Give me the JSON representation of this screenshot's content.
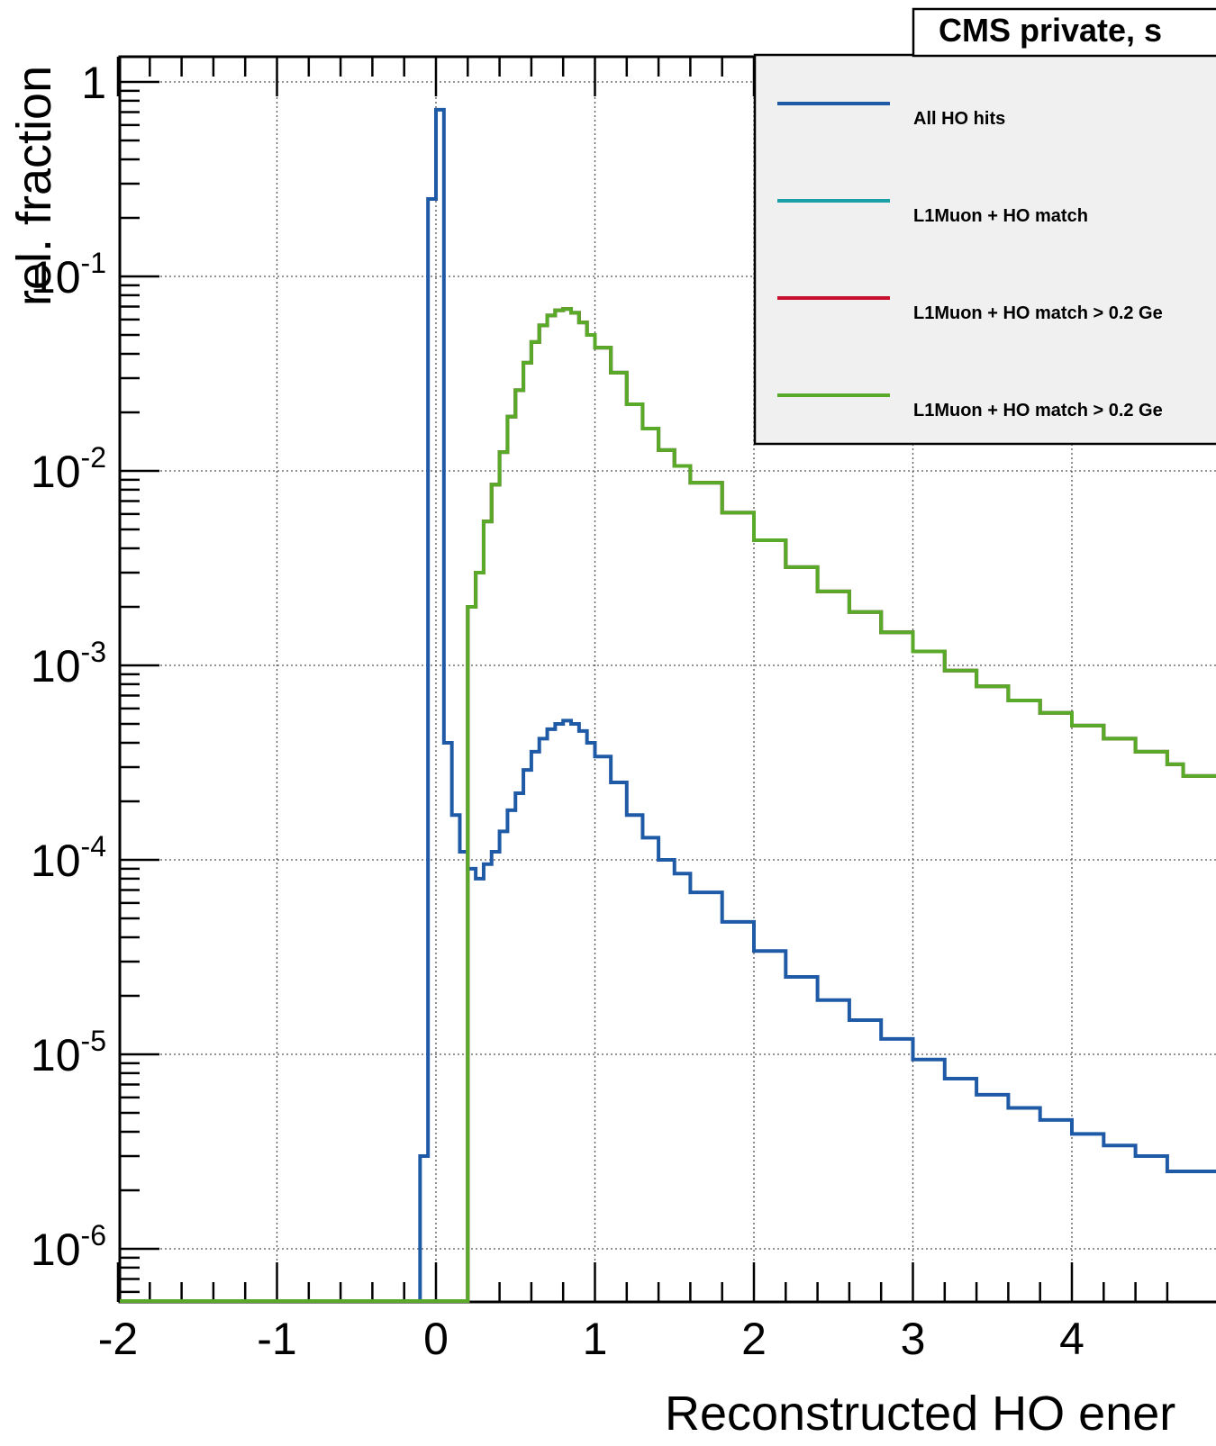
{
  "chart_data": {
    "type": "line",
    "title": "CMS private, s",
    "xlabel": "Reconstructed HO ener",
    "ylabel": "rel. fraction",
    "x_range": [
      -2,
      4.75
    ],
    "y_range": [
      5.5e-07,
      1.2
    ],
    "y_scale": "log",
    "grid": true,
    "x_ticks": [
      -2,
      -1,
      0,
      1,
      2,
      3,
      4
    ],
    "x_tick_labels": [
      "-2",
      "-1",
      "0",
      "1",
      "2",
      "3",
      "4"
    ],
    "y_ticks": [
      {
        "value": 1,
        "base": "1",
        "exp": ""
      },
      {
        "value": 0.1,
        "base": "10",
        "exp": "-1"
      },
      {
        "value": 0.01,
        "base": "10",
        "exp": "-2"
      },
      {
        "value": 0.001,
        "base": "10",
        "exp": "-3"
      },
      {
        "value": 0.0001,
        "base": "10",
        "exp": "-4"
      },
      {
        "value": 1e-05,
        "base": "10",
        "exp": "-5"
      },
      {
        "value": 1e-06,
        "base": "10",
        "exp": "-6"
      }
    ],
    "legend_position": "top-right",
    "series": [
      {
        "name": "All HO hits",
        "color": "#1f5aa6",
        "x": [
          -0.1,
          -0.05,
          0.0,
          0.05,
          0.1,
          0.15,
          0.2,
          0.25,
          0.3,
          0.35,
          0.4,
          0.45,
          0.5,
          0.55,
          0.6,
          0.65,
          0.7,
          0.75,
          0.8,
          0.85,
          0.9,
          0.95,
          1.0,
          1.1,
          1.2,
          1.3,
          1.4,
          1.5,
          1.6,
          1.8,
          2.0,
          2.2,
          2.4,
          2.6,
          2.8,
          3.0,
          3.2,
          3.4,
          3.6,
          3.8,
          4.0,
          4.2,
          4.4,
          4.6,
          4.7
        ],
        "values": [
          3e-06,
          0.25,
          0.72,
          0.0004,
          0.00017,
          0.00011,
          9e-05,
          8e-05,
          9.5e-05,
          0.00011,
          0.00014,
          0.00018,
          0.00022,
          0.00029,
          0.00036,
          0.00042,
          0.00047,
          0.0005,
          0.00052,
          0.0005,
          0.00046,
          0.0004,
          0.00034,
          0.00025,
          0.00017,
          0.00013,
          0.0001,
          8.5e-05,
          6.8e-05,
          4.8e-05,
          3.4e-05,
          2.5e-05,
          1.9e-05,
          1.5e-05,
          1.2e-05,
          9.4e-06,
          7.5e-06,
          6.2e-06,
          5.3e-06,
          4.6e-06,
          3.9e-06,
          3.4e-06,
          3e-06,
          2.5e-06,
          2.5e-06
        ]
      },
      {
        "name": "L1Muon + HO match",
        "color": "#1aa0a6",
        "x": [
          0.2,
          0.25,
          0.3,
          0.35,
          0.4,
          0.45,
          0.5,
          0.55,
          0.6,
          0.65,
          0.7,
          0.75,
          0.8,
          0.85,
          0.9,
          0.95,
          1.0,
          1.1,
          1.2,
          1.3,
          1.4,
          1.5,
          1.6,
          1.8,
          2.0,
          2.2,
          2.4,
          2.6,
          2.8,
          3.0,
          3.2,
          3.4,
          3.6,
          3.8,
          4.0,
          4.2,
          4.4,
          4.6,
          4.7
        ],
        "values": [
          0.002,
          0.003,
          0.0055,
          0.0085,
          0.0125,
          0.019,
          0.026,
          0.036,
          0.046,
          0.056,
          0.063,
          0.067,
          0.068,
          0.065,
          0.058,
          0.05,
          0.043,
          0.032,
          0.022,
          0.0165,
          0.0128,
          0.0106,
          0.0087,
          0.0061,
          0.0044,
          0.0032,
          0.0024,
          0.00188,
          0.00148,
          0.00118,
          0.00094,
          0.00078,
          0.00066,
          0.00057,
          0.00049,
          0.00042,
          0.00036,
          0.00031,
          0.00027
        ]
      },
      {
        "name": "L1Muon + HO match > 0.2 Ge",
        "color": "#c8102e",
        "x": [
          0.2,
          0.25,
          0.3,
          0.35,
          0.4,
          0.45,
          0.5,
          0.55,
          0.6,
          0.65,
          0.7,
          0.75,
          0.8,
          0.85,
          0.9,
          0.95,
          1.0,
          1.1,
          1.2,
          1.3,
          1.4,
          1.5,
          1.6,
          1.8,
          2.0,
          2.2,
          2.4,
          2.6,
          2.8,
          3.0,
          3.2,
          3.4,
          3.6,
          3.8,
          4.0,
          4.2,
          4.4,
          4.6,
          4.7
        ],
        "values": [
          0.002,
          0.003,
          0.0055,
          0.0085,
          0.0125,
          0.019,
          0.026,
          0.036,
          0.046,
          0.056,
          0.063,
          0.067,
          0.068,
          0.065,
          0.058,
          0.05,
          0.043,
          0.032,
          0.022,
          0.0165,
          0.0128,
          0.0106,
          0.0087,
          0.0061,
          0.0044,
          0.0032,
          0.0024,
          0.00188,
          0.00148,
          0.00118,
          0.00094,
          0.00078,
          0.00066,
          0.00057,
          0.00049,
          0.00042,
          0.00036,
          0.00031,
          0.00027
        ]
      },
      {
        "name": "L1Muon + HO match > 0.2 Ge",
        "color": "#5aaa2a",
        "x": [
          0.2,
          0.25,
          0.3,
          0.35,
          0.4,
          0.45,
          0.5,
          0.55,
          0.6,
          0.65,
          0.7,
          0.75,
          0.8,
          0.85,
          0.9,
          0.95,
          1.0,
          1.1,
          1.2,
          1.3,
          1.4,
          1.5,
          1.6,
          1.8,
          2.0,
          2.2,
          2.4,
          2.6,
          2.8,
          3.0,
          3.2,
          3.4,
          3.6,
          3.8,
          4.0,
          4.2,
          4.4,
          4.6,
          4.7
        ],
        "values": [
          0.002,
          0.003,
          0.0055,
          0.0085,
          0.0125,
          0.019,
          0.026,
          0.036,
          0.046,
          0.056,
          0.063,
          0.067,
          0.068,
          0.065,
          0.058,
          0.05,
          0.043,
          0.032,
          0.022,
          0.0165,
          0.0128,
          0.0106,
          0.0087,
          0.0061,
          0.0044,
          0.0032,
          0.0024,
          0.00188,
          0.00148,
          0.00118,
          0.00094,
          0.00078,
          0.00066,
          0.00057,
          0.00049,
          0.00042,
          0.00036,
          0.00031,
          0.00027
        ]
      }
    ]
  }
}
